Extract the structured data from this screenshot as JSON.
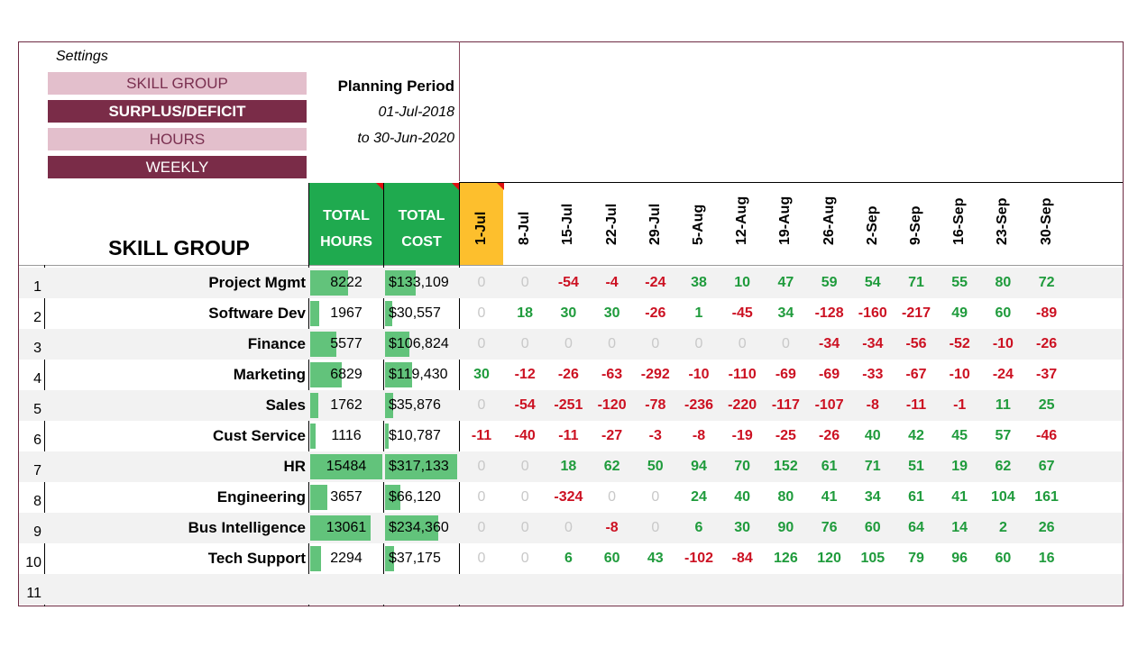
{
  "settings": {
    "label": "Settings",
    "buttons": [
      "SKILL GROUP",
      "SURPLUS/DEFICIT",
      "HOURS",
      "WEEKLY"
    ]
  },
  "planning": {
    "title": "Planning Period",
    "from": "01-Jul-2018",
    "to": "to 30-Jun-2020"
  },
  "header": {
    "skill_group": "SKILL GROUP",
    "total_hours": [
      "TOTAL",
      "HOURS"
    ],
    "total_cost": [
      "TOTAL",
      "COST"
    ],
    "dates": [
      "1-Jul",
      "8-Jul",
      "15-Jul",
      "22-Jul",
      "29-Jul",
      "5-Aug",
      "12-Aug",
      "19-Aug",
      "26-Aug",
      "2-Sep",
      "9-Sep",
      "16-Sep",
      "23-Sep",
      "30-Sep"
    ]
  },
  "colors": {
    "accent_dark": "#7a2c48",
    "accent_light": "#e3bfcc",
    "header_green": "#1faa4f",
    "bar_green": "#62c37b",
    "highlight_col": "#fdbf2d",
    "positive": "#1f9b3c",
    "negative": "#cc1122"
  },
  "rows": [
    {
      "num": "1",
      "skill": "Project Mgmt",
      "hours": "8222",
      "hours_fill": 0.53,
      "cost": "$133,109",
      "cost_fill": 0.42,
      "values": [
        "0",
        "0",
        "-54",
        "-4",
        "-24",
        "38",
        "10",
        "47",
        "59",
        "54",
        "71",
        "55",
        "80",
        "72"
      ]
    },
    {
      "num": "2",
      "skill": "Software Dev",
      "hours": "1967",
      "hours_fill": 0.13,
      "cost": "$30,557",
      "cost_fill": 0.1,
      "values": [
        "0",
        "18",
        "30",
        "30",
        "-26",
        "1",
        "-45",
        "34",
        "-128",
        "-160",
        "-217",
        "49",
        "60",
        "-89"
      ]
    },
    {
      "num": "3",
      "skill": "Finance",
      "hours": "5577",
      "hours_fill": 0.36,
      "cost": "$106,824",
      "cost_fill": 0.34,
      "values": [
        "0",
        "0",
        "0",
        "0",
        "0",
        "0",
        "0",
        "0",
        "-34",
        "-34",
        "-56",
        "-52",
        "-10",
        "-26"
      ]
    },
    {
      "num": "4",
      "skill": "Marketing",
      "hours": "6829",
      "hours_fill": 0.44,
      "cost": "$119,430",
      "cost_fill": 0.38,
      "values": [
        "30",
        "-12",
        "-26",
        "-63",
        "-292",
        "-10",
        "-110",
        "-69",
        "-69",
        "-33",
        "-67",
        "-10",
        "-24",
        "-37"
      ]
    },
    {
      "num": "5",
      "skill": "Sales",
      "hours": "1762",
      "hours_fill": 0.11,
      "cost": "$35,876",
      "cost_fill": 0.11,
      "values": [
        "0",
        "-54",
        "-251",
        "-120",
        "-78",
        "-236",
        "-220",
        "-117",
        "-107",
        "-8",
        "-11",
        "-1",
        "11",
        "25"
      ]
    },
    {
      "num": "6",
      "skill": "Cust Service",
      "hours": "1116",
      "hours_fill": 0.07,
      "cost": "$10,787",
      "cost_fill": 0.03,
      "values": [
        "-11",
        "-40",
        "-11",
        "-27",
        "-3",
        "-8",
        "-19",
        "-25",
        "-26",
        "40",
        "42",
        "45",
        "57",
        "-46"
      ]
    },
    {
      "num": "7",
      "skill": "HR",
      "hours": "15484",
      "hours_fill": 1.0,
      "cost": "$317,133",
      "cost_fill": 1.0,
      "values": [
        "0",
        "0",
        "18",
        "62",
        "50",
        "94",
        "70",
        "152",
        "61",
        "71",
        "51",
        "19",
        "62",
        "67"
      ]
    },
    {
      "num": "8",
      "skill": "Engineering",
      "hours": "3657",
      "hours_fill": 0.24,
      "cost": "$66,120",
      "cost_fill": 0.21,
      "values": [
        "0",
        "0",
        "-324",
        "0",
        "0",
        "24",
        "40",
        "80",
        "41",
        "34",
        "61",
        "41",
        "104",
        "161"
      ]
    },
    {
      "num": "9",
      "skill": "Bus Intelligence",
      "hours": "13061",
      "hours_fill": 0.84,
      "cost": "$234,360",
      "cost_fill": 0.74,
      "values": [
        "0",
        "0",
        "0",
        "-8",
        "0",
        "6",
        "30",
        "90",
        "76",
        "60",
        "64",
        "14",
        "2",
        "26"
      ]
    },
    {
      "num": "10",
      "skill": "Tech Support",
      "hours": "2294",
      "hours_fill": 0.15,
      "cost": "$37,175",
      "cost_fill": 0.12,
      "values": [
        "0",
        "0",
        "6",
        "60",
        "43",
        "-102",
        "-84",
        "126",
        "120",
        "105",
        "79",
        "96",
        "60",
        "16"
      ]
    },
    {
      "num": "11",
      "skill": "",
      "hours": "",
      "hours_fill": 0,
      "cost": "",
      "cost_fill": 0,
      "values": []
    }
  ]
}
